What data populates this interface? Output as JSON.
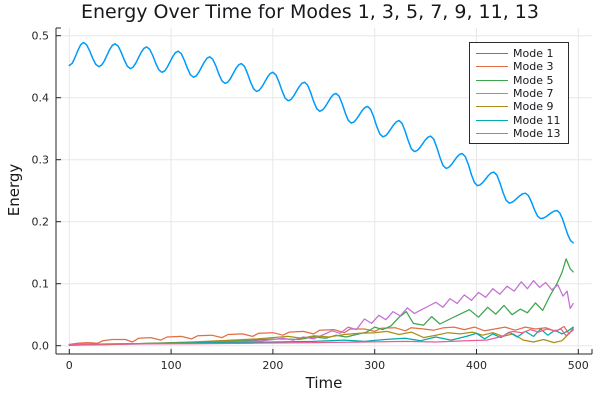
{
  "page": {
    "background": "#FFFFFF"
  },
  "chart_data": {
    "type": "line",
    "title": "Energy Over Time for Modes 1, 3, 5, 7, 9, 11, 13",
    "xlabel": "Time",
    "ylabel": "Energy",
    "xlim": [
      0,
      500
    ],
    "ylim": [
      0,
      0.5
    ],
    "grid": true,
    "grid_color": "#E7E7E7",
    "axis_color": "#26262A",
    "tick_label_color": "#26262A",
    "legend_position": "top-right",
    "xticks": {
      "values": [
        0,
        100,
        200,
        300,
        400,
        500
      ],
      "labels": [
        "0",
        "100",
        "200",
        "300",
        "400",
        "500"
      ]
    },
    "yticks": {
      "values": [
        0,
        0.1,
        0.2,
        0.3,
        0.4,
        0.5
      ],
      "labels": [
        "0.0",
        "0.1",
        "0.2",
        "0.3",
        "0.4",
        "0.5"
      ]
    },
    "series": [
      {
        "name": "Mode 1",
        "color": "#009AFA",
        "interp": "smooth",
        "points": [
          [
            0,
            0.452
          ],
          [
            14,
            0.489
          ],
          [
            29,
            0.45
          ],
          [
            45,
            0.487
          ],
          [
            60,
            0.447
          ],
          [
            76,
            0.482
          ],
          [
            91,
            0.441
          ],
          [
            107,
            0.475
          ],
          [
            122,
            0.433
          ],
          [
            138,
            0.466
          ],
          [
            153,
            0.423
          ],
          [
            169,
            0.455
          ],
          [
            184,
            0.41
          ],
          [
            200,
            0.441
          ],
          [
            215,
            0.395
          ],
          [
            231,
            0.425
          ],
          [
            246,
            0.378
          ],
          [
            262,
            0.407
          ],
          [
            277,
            0.359
          ],
          [
            293,
            0.386
          ],
          [
            308,
            0.337
          ],
          [
            324,
            0.363
          ],
          [
            339,
            0.313
          ],
          [
            355,
            0.338
          ],
          [
            370,
            0.286
          ],
          [
            386,
            0.31
          ],
          [
            401,
            0.258
          ],
          [
            417,
            0.28
          ],
          [
            432,
            0.23
          ],
          [
            448,
            0.246
          ],
          [
            463,
            0.205
          ],
          [
            479,
            0.218
          ],
          [
            495,
            0.166
          ]
        ]
      },
      {
        "name": "Mode 3",
        "color": "#E26E47",
        "interp": "linear",
        "points": [
          [
            0,
            0.002
          ],
          [
            8,
            0.004
          ],
          [
            18,
            0.005
          ],
          [
            28,
            0.004
          ],
          [
            33,
            0.008
          ],
          [
            42,
            0.01
          ],
          [
            55,
            0.01
          ],
          [
            62,
            0.006
          ],
          [
            68,
            0.012
          ],
          [
            80,
            0.013
          ],
          [
            90,
            0.009
          ],
          [
            96,
            0.014
          ],
          [
            110,
            0.015
          ],
          [
            120,
            0.011
          ],
          [
            126,
            0.016
          ],
          [
            140,
            0.017
          ],
          [
            150,
            0.013
          ],
          [
            156,
            0.018
          ],
          [
            170,
            0.019
          ],
          [
            180,
            0.015
          ],
          [
            186,
            0.02
          ],
          [
            200,
            0.021
          ],
          [
            210,
            0.017
          ],
          [
            216,
            0.022
          ],
          [
            230,
            0.023
          ],
          [
            240,
            0.019
          ],
          [
            246,
            0.025
          ],
          [
            260,
            0.026
          ],
          [
            270,
            0.021
          ],
          [
            276,
            0.027
          ],
          [
            290,
            0.027
          ],
          [
            300,
            0.023
          ],
          [
            306,
            0.028
          ],
          [
            320,
            0.029
          ],
          [
            330,
            0.024
          ],
          [
            336,
            0.029
          ],
          [
            348,
            0.027
          ],
          [
            358,
            0.025
          ],
          [
            368,
            0.029
          ],
          [
            378,
            0.03
          ],
          [
            388,
            0.026
          ],
          [
            398,
            0.03
          ],
          [
            408,
            0.024
          ],
          [
            418,
            0.027
          ],
          [
            428,
            0.03
          ],
          [
            438,
            0.025
          ],
          [
            448,
            0.03
          ],
          [
            458,
            0.027
          ],
          [
            468,
            0.029
          ],
          [
            478,
            0.023
          ],
          [
            486,
            0.031
          ],
          [
            491,
            0.019
          ],
          [
            495,
            0.029
          ]
        ]
      },
      {
        "name": "Mode 5",
        "color": "#3DA44E",
        "interp": "linear",
        "points": [
          [
            0,
            0.001
          ],
          [
            30,
            0.002
          ],
          [
            60,
            0.003
          ],
          [
            90,
            0.004
          ],
          [
            120,
            0.005
          ],
          [
            150,
            0.007
          ],
          [
            170,
            0.008
          ],
          [
            190,
            0.01
          ],
          [
            210,
            0.011
          ],
          [
            225,
            0.01
          ],
          [
            240,
            0.014
          ],
          [
            252,
            0.012
          ],
          [
            262,
            0.017
          ],
          [
            272,
            0.014
          ],
          [
            282,
            0.018
          ],
          [
            292,
            0.022
          ],
          [
            300,
            0.03
          ],
          [
            308,
            0.026
          ],
          [
            316,
            0.032
          ],
          [
            324,
            0.046
          ],
          [
            331,
            0.055
          ],
          [
            338,
            0.036
          ],
          [
            348,
            0.033
          ],
          [
            356,
            0.047
          ],
          [
            364,
            0.035
          ],
          [
            374,
            0.043
          ],
          [
            384,
            0.051
          ],
          [
            393,
            0.058
          ],
          [
            402,
            0.046
          ],
          [
            411,
            0.062
          ],
          [
            419,
            0.051
          ],
          [
            427,
            0.065
          ],
          [
            435,
            0.05
          ],
          [
            443,
            0.059
          ],
          [
            450,
            0.053
          ],
          [
            458,
            0.069
          ],
          [
            465,
            0.057
          ],
          [
            472,
            0.08
          ],
          [
            479,
            0.1
          ],
          [
            484,
            0.118
          ],
          [
            488,
            0.14
          ],
          [
            492,
            0.124
          ],
          [
            495,
            0.119
          ]
        ]
      },
      {
        "name": "Mode 7",
        "color": "#C371D2",
        "interp": "linear",
        "points": [
          [
            0,
            0.001
          ],
          [
            40,
            0.002
          ],
          [
            80,
            0.003
          ],
          [
            120,
            0.004
          ],
          [
            160,
            0.006
          ],
          [
            190,
            0.008
          ],
          [
            210,
            0.012
          ],
          [
            220,
            0.009
          ],
          [
            230,
            0.014
          ],
          [
            240,
            0.011
          ],
          [
            250,
            0.018
          ],
          [
            258,
            0.024
          ],
          [
            266,
            0.02
          ],
          [
            274,
            0.03
          ],
          [
            282,
            0.026
          ],
          [
            290,
            0.043
          ],
          [
            297,
            0.036
          ],
          [
            304,
            0.049
          ],
          [
            311,
            0.042
          ],
          [
            318,
            0.055
          ],
          [
            325,
            0.048
          ],
          [
            332,
            0.061
          ],
          [
            339,
            0.052
          ],
          [
            346,
            0.058
          ],
          [
            353,
            0.064
          ],
          [
            360,
            0.07
          ],
          [
            367,
            0.062
          ],
          [
            374,
            0.076
          ],
          [
            381,
            0.068
          ],
          [
            388,
            0.082
          ],
          [
            395,
            0.073
          ],
          [
            402,
            0.086
          ],
          [
            409,
            0.078
          ],
          [
            416,
            0.092
          ],
          [
            423,
            0.083
          ],
          [
            430,
            0.096
          ],
          [
            437,
            0.088
          ],
          [
            444,
            0.103
          ],
          [
            450,
            0.092
          ],
          [
            456,
            0.105
          ],
          [
            462,
            0.094
          ],
          [
            468,
            0.102
          ],
          [
            474,
            0.09
          ],
          [
            480,
            0.098
          ],
          [
            485,
            0.08
          ],
          [
            489,
            0.088
          ],
          [
            492,
            0.06
          ],
          [
            495,
            0.068
          ]
        ]
      },
      {
        "name": "Mode 9",
        "color": "#AC8E18",
        "interp": "linear",
        "points": [
          [
            0,
            0.001
          ],
          [
            40,
            0.002
          ],
          [
            80,
            0.004
          ],
          [
            120,
            0.006
          ],
          [
            160,
            0.009
          ],
          [
            185,
            0.011
          ],
          [
            200,
            0.013
          ],
          [
            215,
            0.015
          ],
          [
            228,
            0.012
          ],
          [
            240,
            0.016
          ],
          [
            255,
            0.014
          ],
          [
            270,
            0.018
          ],
          [
            285,
            0.02
          ],
          [
            300,
            0.021
          ],
          [
            312,
            0.023
          ],
          [
            324,
            0.018
          ],
          [
            336,
            0.022
          ],
          [
            348,
            0.013
          ],
          [
            360,
            0.017
          ],
          [
            372,
            0.021
          ],
          [
            384,
            0.019
          ],
          [
            396,
            0.022
          ],
          [
            406,
            0.017
          ],
          [
            416,
            0.021
          ],
          [
            426,
            0.015
          ],
          [
            436,
            0.019
          ],
          [
            446,
            0.009
          ],
          [
            456,
            0.006
          ],
          [
            466,
            0.01
          ],
          [
            476,
            0.005
          ],
          [
            484,
            0.008
          ],
          [
            490,
            0.018
          ],
          [
            495,
            0.027
          ]
        ]
      },
      {
        "name": "Mode 11",
        "color": "#00AAAE",
        "interp": "linear",
        "points": [
          [
            0,
            0.002
          ],
          [
            50,
            0.003
          ],
          [
            100,
            0.004
          ],
          [
            150,
            0.005
          ],
          [
            200,
            0.006
          ],
          [
            240,
            0.007
          ],
          [
            270,
            0.009
          ],
          [
            290,
            0.007
          ],
          [
            310,
            0.01
          ],
          [
            330,
            0.012
          ],
          [
            345,
            0.008
          ],
          [
            360,
            0.014
          ],
          [
            375,
            0.009
          ],
          [
            390,
            0.015
          ],
          [
            400,
            0.02
          ],
          [
            408,
            0.011
          ],
          [
            416,
            0.019
          ],
          [
            424,
            0.013
          ],
          [
            432,
            0.022
          ],
          [
            440,
            0.014
          ],
          [
            448,
            0.023
          ],
          [
            456,
            0.015
          ],
          [
            463,
            0.027
          ],
          [
            470,
            0.017
          ],
          [
            477,
            0.025
          ],
          [
            484,
            0.019
          ],
          [
            490,
            0.024
          ],
          [
            495,
            0.03
          ]
        ]
      },
      {
        "name": "Mode 13",
        "color": "#ED5D92",
        "interp": "linear",
        "points": [
          [
            0,
            0.002
          ],
          [
            60,
            0.003
          ],
          [
            120,
            0.003
          ],
          [
            180,
            0.004
          ],
          [
            240,
            0.005
          ],
          [
            290,
            0.006
          ],
          [
            330,
            0.007
          ],
          [
            360,
            0.006
          ],
          [
            390,
            0.008
          ],
          [
            410,
            0.009
          ],
          [
            425,
            0.015
          ],
          [
            435,
            0.023
          ],
          [
            445,
            0.021
          ],
          [
            453,
            0.026
          ],
          [
            461,
            0.022
          ],
          [
            469,
            0.027
          ],
          [
            477,
            0.024
          ],
          [
            483,
            0.027
          ],
          [
            488,
            0.016
          ],
          [
            492,
            0.022
          ],
          [
            495,
            0.025
          ]
        ]
      }
    ]
  }
}
